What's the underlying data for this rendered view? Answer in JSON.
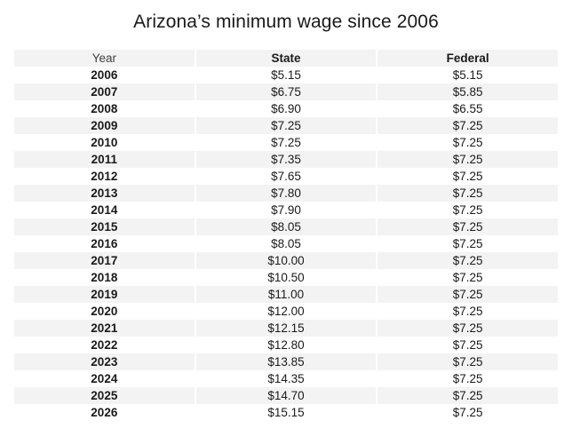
{
  "title": "Arizona’s minimum wage since 2006",
  "table": {
    "columns": [
      {
        "key": "year",
        "label": "Year"
      },
      {
        "key": "state",
        "label": "State"
      },
      {
        "key": "federal",
        "label": "Federal"
      }
    ],
    "rows": [
      {
        "year": "2006",
        "state": "$5.15",
        "federal": "$5.15"
      },
      {
        "year": "2007",
        "state": "$6.75",
        "federal": "$5.85"
      },
      {
        "year": "2008",
        "state": "$6.90",
        "federal": "$6.55"
      },
      {
        "year": "2009",
        "state": "$7.25",
        "federal": "$7.25"
      },
      {
        "year": "2010",
        "state": "$7.25",
        "federal": "$7.25"
      },
      {
        "year": "2011",
        "state": "$7.35",
        "federal": "$7.25"
      },
      {
        "year": "2012",
        "state": "$7.65",
        "federal": "$7.25"
      },
      {
        "year": "2013",
        "state": "$7.80",
        "federal": "$7.25"
      },
      {
        "year": "2014",
        "state": "$7.90",
        "federal": "$7.25"
      },
      {
        "year": "2015",
        "state": "$8.05",
        "federal": "$7.25"
      },
      {
        "year": "2016",
        "state": "$8.05",
        "federal": "$7.25"
      },
      {
        "year": "2017",
        "state": "$10.00",
        "federal": "$7.25"
      },
      {
        "year": "2018",
        "state": "$10.50",
        "federal": "$7.25"
      },
      {
        "year": "2019",
        "state": "$11.00",
        "federal": "$7.25"
      },
      {
        "year": "2020",
        "state": "$12.00",
        "federal": "$7.25"
      },
      {
        "year": "2021",
        "state": "$12.15",
        "federal": "$7.25"
      },
      {
        "year": "2022",
        "state": "$12.80",
        "federal": "$7.25"
      },
      {
        "year": "2023",
        "state": "$13.85",
        "federal": "$7.25"
      },
      {
        "year": "2024",
        "state": "$14.35",
        "federal": "$7.25"
      },
      {
        "year": "2025",
        "state": "$14.70",
        "federal": "$7.25"
      },
      {
        "year": "2026",
        "state": "$15.15",
        "federal": "$7.25"
      }
    ]
  },
  "colors": {
    "stripe": "#f3f3f3",
    "title_text": "#1a1a1a",
    "body_text": "#1a1a1a",
    "year_header_text": "#404040",
    "background": "#ffffff"
  },
  "chart_data": {
    "type": "table",
    "title": "Arizona’s minimum wage since 2006",
    "columns": [
      "Year",
      "State",
      "Federal"
    ],
    "x": [
      2006,
      2007,
      2008,
      2009,
      2010,
      2011,
      2012,
      2013,
      2014,
      2015,
      2016,
      2017,
      2018,
      2019,
      2020,
      2021,
      2022,
      2023,
      2024,
      2025,
      2026
    ],
    "series": [
      {
        "name": "State",
        "values": [
          5.15,
          6.75,
          6.9,
          7.25,
          7.25,
          7.35,
          7.65,
          7.8,
          7.9,
          8.05,
          8.05,
          10.0,
          10.5,
          11.0,
          12.0,
          12.15,
          12.8,
          13.85,
          14.35,
          14.7,
          15.15
        ]
      },
      {
        "name": "Federal",
        "values": [
          5.15,
          5.85,
          6.55,
          7.25,
          7.25,
          7.25,
          7.25,
          7.25,
          7.25,
          7.25,
          7.25,
          7.25,
          7.25,
          7.25,
          7.25,
          7.25,
          7.25,
          7.25,
          7.25,
          7.25,
          7.25
        ]
      }
    ],
    "value_unit": "USD per hour",
    "layout": {
      "header_background": "#f3f3f3",
      "row_striping": true,
      "grid": false,
      "legend_position": "none"
    }
  }
}
